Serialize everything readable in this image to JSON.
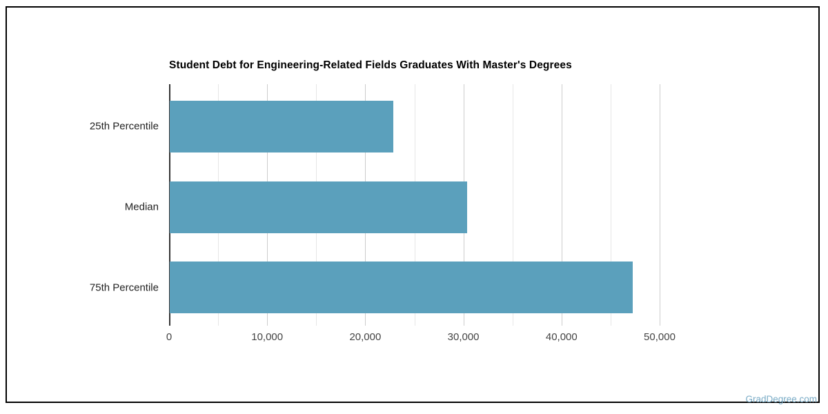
{
  "branding": {
    "watermark": "GradDegree.com"
  },
  "chart_data": {
    "type": "bar",
    "orientation": "horizontal",
    "title": "Student Debt for Engineering-Related Fields Graduates With Master's Degrees",
    "categories": [
      "25th Percentile",
      "Median",
      "75th Percentile"
    ],
    "values": [
      22800,
      30300,
      47200
    ],
    "xlabel": "",
    "ylabel": "",
    "xlim": [
      0,
      50000
    ],
    "x_major_ticks": [
      0,
      10000,
      20000,
      30000,
      40000,
      50000
    ],
    "x_minor_step": 5000,
    "x_tick_labels": [
      "0",
      "10,000",
      "20,000",
      "30,000",
      "40,000",
      "50,000"
    ],
    "grid": true,
    "legend": "none"
  },
  "colors": {
    "bar": "#5BA0BC",
    "axis": "#333333",
    "grid_major": "#cccccc",
    "grid_minor": "#e6e6e6",
    "title": "#000000",
    "category_label": "#222222",
    "tick_label": "#444444",
    "watermark": "#79ABC6",
    "border": "#000000"
  }
}
